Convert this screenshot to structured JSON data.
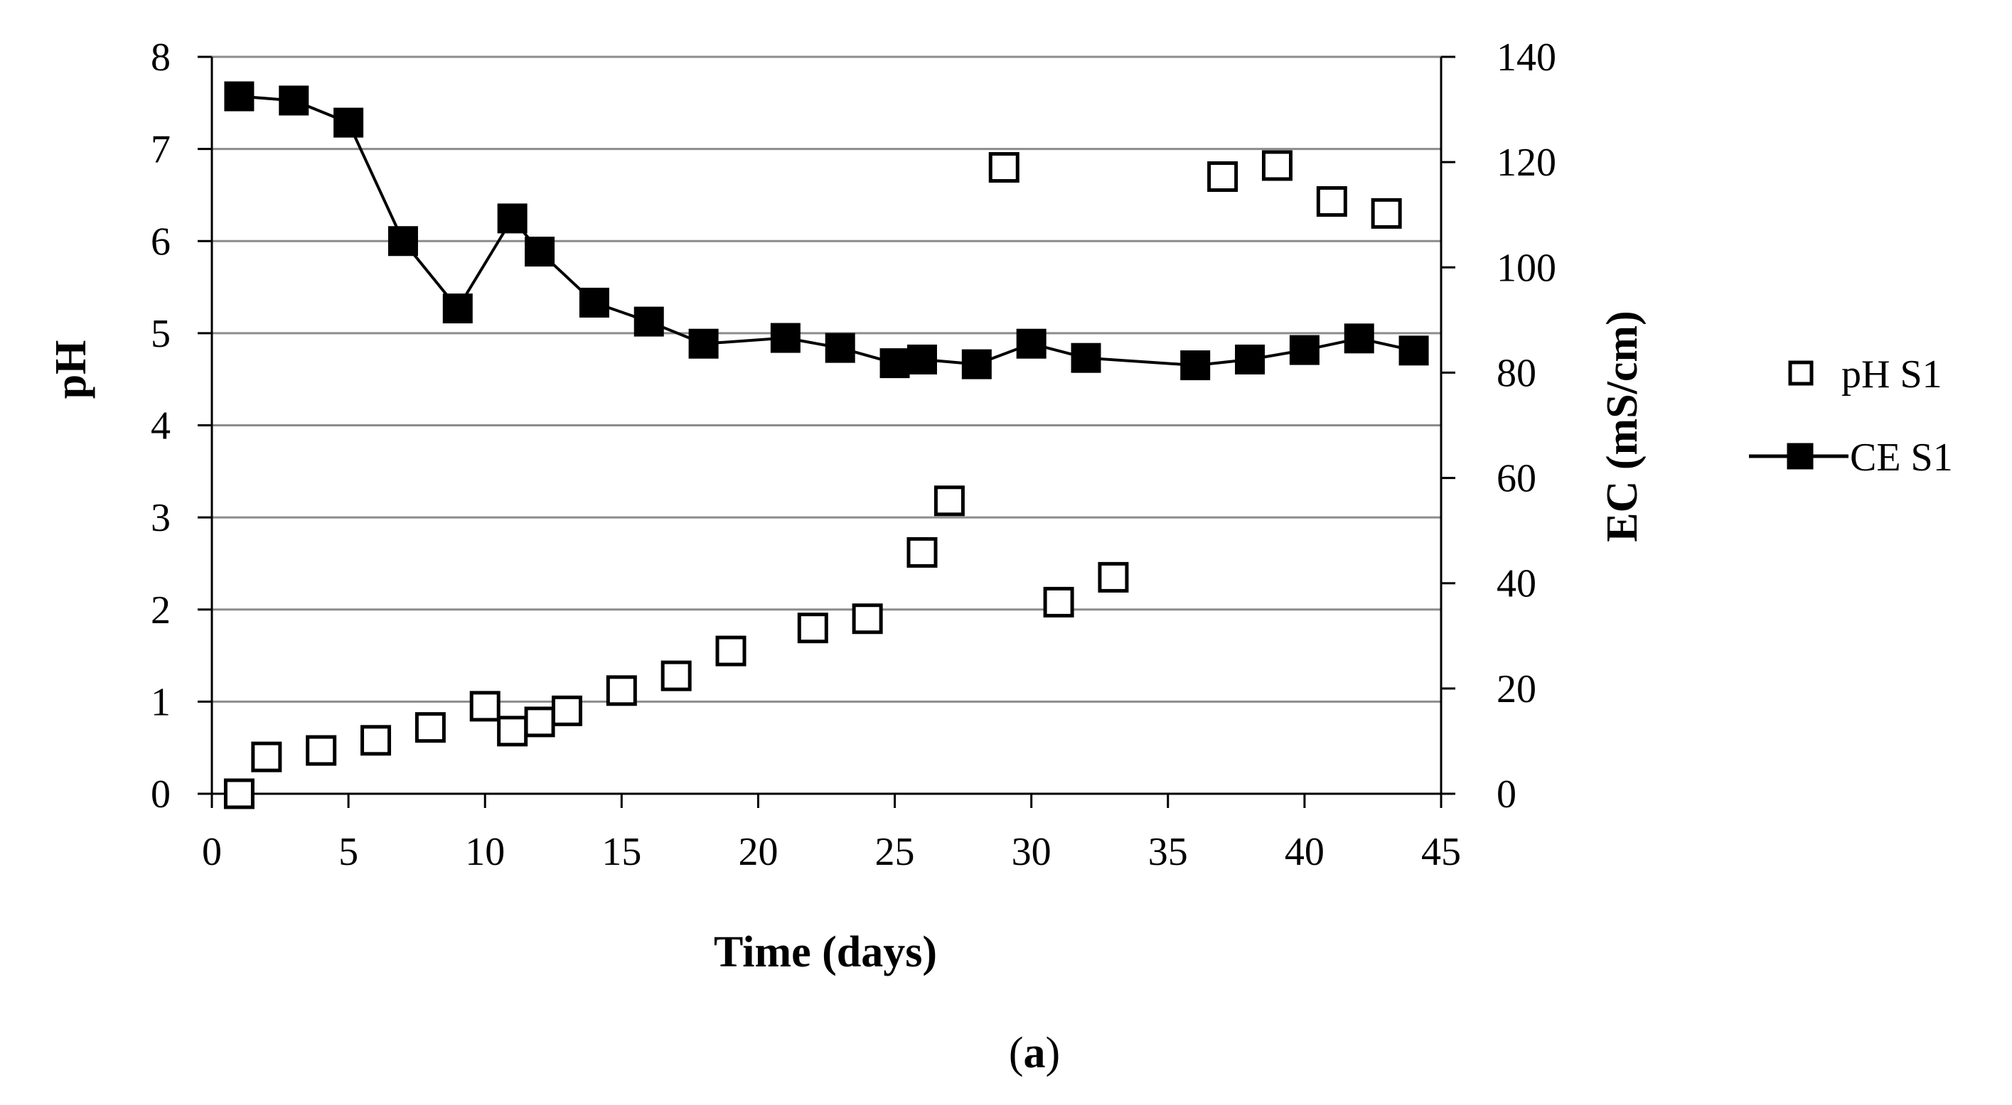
{
  "chart_data": {
    "type": "scatter",
    "title": "",
    "caption": {
      "open": "(",
      "label": "a",
      "close": ")"
    },
    "xlabel": "Time (days)",
    "ylabel_left": "pH",
    "ylabel_right": "EC (mS/cm)",
    "xlim": [
      0,
      45
    ],
    "xticks": [
      "0",
      "5",
      "10",
      "15",
      "20",
      "25",
      "30",
      "35",
      "40",
      "45"
    ],
    "ylim_left": [
      0,
      8
    ],
    "yticks_left": [
      "0",
      "1",
      "2",
      "3",
      "4",
      "5",
      "6",
      "7",
      "8"
    ],
    "ylim_right": [
      0,
      140
    ],
    "yticks_right": [
      "0",
      "20",
      "40",
      "60",
      "80",
      "100",
      "120",
      "140"
    ],
    "grid": "horizontal",
    "legend_position": "right",
    "series": [
      {
        "name": "pH S1",
        "axis": "left",
        "style": "open-square-markers",
        "x": [
          1,
          2,
          4,
          6,
          8,
          10,
          11,
          12,
          13,
          15,
          17,
          19,
          22,
          24,
          26,
          27,
          29,
          31,
          33,
          37,
          39,
          41,
          43
        ],
        "y": [
          0,
          0.4,
          0.47,
          0.58,
          0.72,
          0.95,
          0.68,
          0.78,
          0.9,
          1.12,
          1.28,
          1.55,
          1.8,
          1.9,
          2.62,
          3.18,
          6.8,
          2.08,
          2.35,
          6.7,
          6.82,
          6.43,
          6.3
        ]
      },
      {
        "name": "CE S1",
        "axis": "right",
        "style": "line-with-filled-square-markers",
        "x": [
          1,
          3,
          5,
          7,
          9,
          11,
          12,
          14,
          16,
          18,
          21,
          23,
          25,
          26,
          28,
          30,
          32,
          36,
          38,
          40,
          42,
          44
        ],
        "y": [
          132.5,
          131.7,
          127.5,
          105,
          92.2,
          109.3,
          103,
          93.3,
          89.7,
          85.5,
          86.6,
          84.7,
          81.8,
          82.5,
          81.6,
          85.5,
          82.8,
          81.4,
          82.5,
          84.3,
          86.5,
          84.2
        ]
      }
    ]
  }
}
